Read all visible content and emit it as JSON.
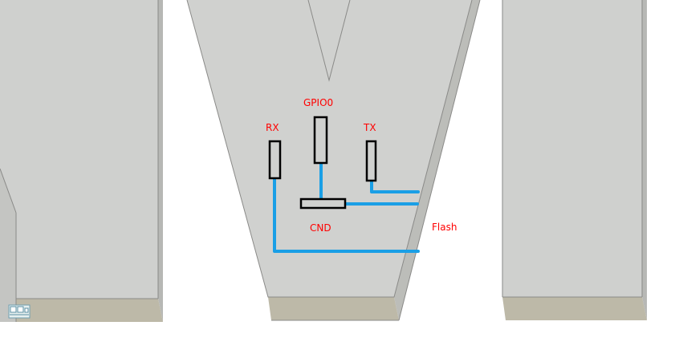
{
  "labels": {
    "rx": "RX",
    "gpio0": "GPIO0",
    "tx": "TX",
    "gnd": "CND",
    "flash": "Flash"
  },
  "colors": {
    "label": "#ff0000",
    "wire": "#1a9fe6",
    "pad_fill": "#d0d1cf",
    "pad_stroke": "#000000",
    "face": "#cfd0ce",
    "face_edge": "#b9bab7",
    "base": "#bdb9a8",
    "outline": "#8a8a88"
  },
  "icons": {
    "corner": "view-cube-icon"
  }
}
